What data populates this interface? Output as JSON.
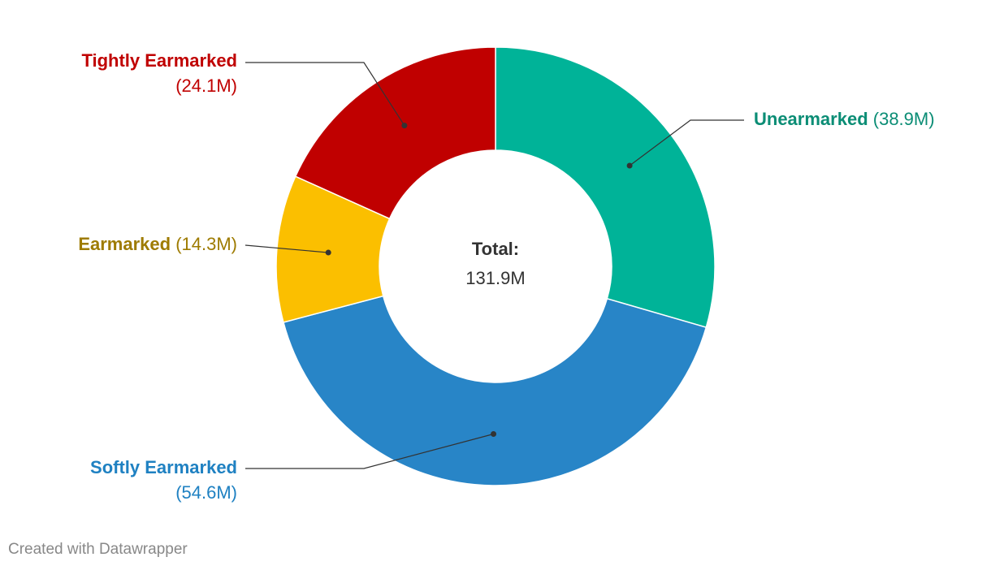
{
  "chart_data": {
    "type": "pie",
    "variant": "donut",
    "slices": [
      {
        "label": "Unearmarked",
        "value_label": "(38.9M)",
        "value": 38.9,
        "color": "#00b398"
      },
      {
        "label": "Softly Earmarked",
        "value_label": "(54.6M)",
        "value": 54.6,
        "color": "#2885c7"
      },
      {
        "label": "Earmarked",
        "value_label": "(14.3M)",
        "value": 14.3,
        "color": "#fbbf00"
      },
      {
        "label": "Tightly Earmarked",
        "value_label": "(24.1M)",
        "value": 24.1,
        "color": "#c00000"
      }
    ],
    "label_colors": {
      "Unearmarked": "#0b8d75",
      "Softly Earmarked": "#1f81c2",
      "Earmarked": "#9e7b00",
      "Tightly Earmarked": "#c00000"
    },
    "center_label": {
      "title": "Total:",
      "value": "131.9M"
    },
    "legend": "none"
  },
  "footer": {
    "credit": "Created with Datawrapper"
  }
}
